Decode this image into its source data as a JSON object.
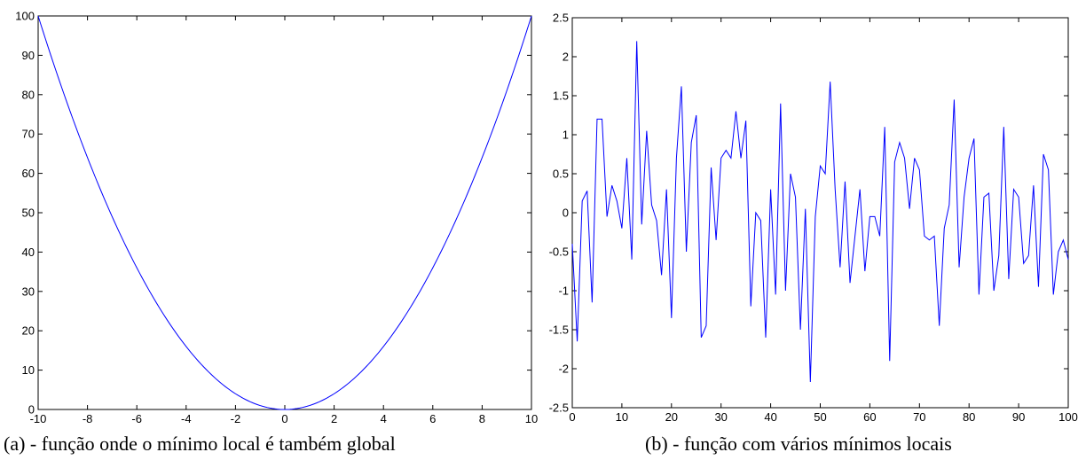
{
  "chart_data": [
    {
      "type": "line",
      "title": "",
      "xlabel": "",
      "ylabel": "",
      "caption": "(a) - função onde o mínimo local é também global",
      "xlim": [
        -10,
        10
      ],
      "ylim": [
        0,
        100
      ],
      "xticks": [
        "-10",
        "-8",
        "-6",
        "-4",
        "-2",
        "0",
        "2",
        "4",
        "6",
        "8",
        "10"
      ],
      "yticks": [
        "0",
        "10",
        "20",
        "30",
        "40",
        "50",
        "60",
        "70",
        "80",
        "90",
        "100"
      ],
      "grid": false,
      "line_color": "#0000ff",
      "series": [
        {
          "function": "y = x^2",
          "x": [
            -10,
            -9,
            -8,
            -7,
            -6,
            -5,
            -4,
            -3,
            -2,
            -1,
            0,
            1,
            2,
            3,
            4,
            5,
            6,
            7,
            8,
            9,
            10
          ],
          "y": [
            100,
            81,
            64,
            49,
            36,
            25,
            16,
            9,
            4,
            1,
            0,
            1,
            4,
            9,
            16,
            25,
            36,
            49,
            64,
            81,
            100
          ]
        }
      ]
    },
    {
      "type": "line",
      "title": "",
      "xlabel": "",
      "ylabel": "",
      "caption": "(b) - função com vários mínimos locais",
      "xlim": [
        0,
        100
      ],
      "ylim": [
        -2.5,
        2.5
      ],
      "xticks": [
        "0",
        "10",
        "20",
        "30",
        "40",
        "50",
        "60",
        "70",
        "80",
        "90",
        "100"
      ],
      "yticks": [
        "-2.5",
        "-2",
        "-1.5",
        "-1",
        "-0.5",
        "0",
        "0.5",
        "1",
        "1.5",
        "2",
        "2.5"
      ],
      "grid": false,
      "line_color": "#0000ff",
      "series": [
        {
          "x": [
            0,
            1,
            2,
            3,
            4,
            5,
            6,
            7,
            8,
            9,
            10,
            11,
            12,
            13,
            14,
            15,
            16,
            17,
            18,
            19,
            20,
            21,
            22,
            23,
            24,
            25,
            26,
            27,
            28,
            29,
            30,
            31,
            32,
            33,
            34,
            35,
            36,
            37,
            38,
            39,
            40,
            41,
            42,
            43,
            44,
            45,
            46,
            47,
            48,
            49,
            50,
            51,
            52,
            53,
            54,
            55,
            56,
            57,
            58,
            59,
            60,
            61,
            62,
            63,
            64,
            65,
            66,
            67,
            68,
            69,
            70,
            71,
            72,
            73,
            74,
            75,
            76,
            77,
            78,
            79,
            80,
            81,
            82,
            83,
            84,
            85,
            86,
            87,
            88,
            89,
            90,
            91,
            92,
            93,
            94,
            95,
            96,
            97,
            98,
            99,
            100
          ],
          "y": [
            -0.4,
            -1.65,
            0.15,
            0.28,
            -1.15,
            1.2,
            1.2,
            -0.05,
            0.35,
            0.15,
            -0.2,
            0.7,
            -0.6,
            2.2,
            -0.15,
            1.05,
            0.1,
            -0.1,
            -0.8,
            0.3,
            -1.35,
            0.7,
            1.62,
            -0.5,
            0.9,
            1.25,
            -1.6,
            -1.45,
            0.58,
            -0.35,
            0.7,
            0.8,
            0.7,
            1.3,
            0.7,
            1.18,
            -1.2,
            0,
            -0.1,
            -1.6,
            0.3,
            -1.05,
            1.4,
            -1.0,
            0.5,
            0.2,
            -1.5,
            0.05,
            -2.17,
            -0.05,
            0.6,
            0.5,
            1.68,
            0.3,
            -0.7,
            0.4,
            -0.9,
            -0.3,
            0.3,
            -0.75,
            -0.05,
            -0.05,
            -0.3,
            1.1,
            -1.9,
            0.65,
            0.9,
            0.7,
            0.05,
            0.7,
            0.55,
            -0.3,
            -0.35,
            -0.3,
            -1.45,
            -0.2,
            0.1,
            1.45,
            -0.7,
            0.2,
            0.7,
            0.95,
            -1.05,
            0.2,
            0.25,
            -1.0,
            -0.55,
            1.1,
            -0.85,
            0.3,
            0.2,
            -0.65,
            -0.55,
            0.35,
            -0.95,
            0.75,
            0.55,
            -1.05,
            -0.5,
            -0.35,
            -0.6
          ]
        }
      ]
    }
  ]
}
